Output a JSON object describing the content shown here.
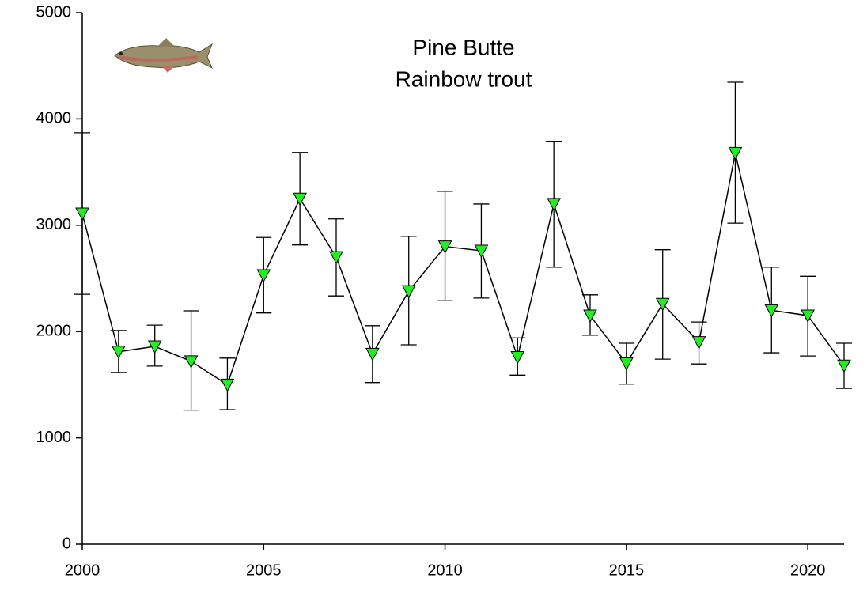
{
  "chart_data": {
    "type": "line",
    "title": "Pine Butte",
    "subtitle": "Rainbow trout",
    "x": [
      2000,
      2001,
      2002,
      2003,
      2004,
      2005,
      2006,
      2007,
      2008,
      2009,
      2010,
      2011,
      2012,
      2013,
      2014,
      2015,
      2016,
      2017,
      2018,
      2019,
      2020,
      2021
    ],
    "values": [
      3110,
      1810,
      1860,
      1720,
      1500,
      2530,
      3250,
      2700,
      1790,
      2380,
      2800,
      2760,
      1760,
      3200,
      2150,
      1700,
      2260,
      1900,
      3680,
      2200,
      2150,
      1680
    ],
    "upper": [
      3870,
      2010,
      2060,
      2195,
      1750,
      2885,
      3685,
      3060,
      2055,
      2895,
      3320,
      3200,
      1940,
      3790,
      2345,
      1890,
      2770,
      2090,
      4345,
      2605,
      2520,
      1890
    ],
    "lower": [
      2350,
      1615,
      1675,
      1260,
      1265,
      2175,
      2815,
      2335,
      1520,
      1875,
      2290,
      2315,
      1590,
      2605,
      1965,
      1505,
      1740,
      1695,
      3020,
      1800,
      1770,
      1465
    ],
    "color": "#000000",
    "marker_color": "#22ee22",
    "xlim": [
      2000,
      2021
    ],
    "xticks": [
      2000,
      2005,
      2010,
      2015,
      2020
    ],
    "ylim": [
      0,
      5000
    ],
    "yticks": [
      0,
      1000,
      2000,
      3000,
      4000,
      5000
    ]
  }
}
